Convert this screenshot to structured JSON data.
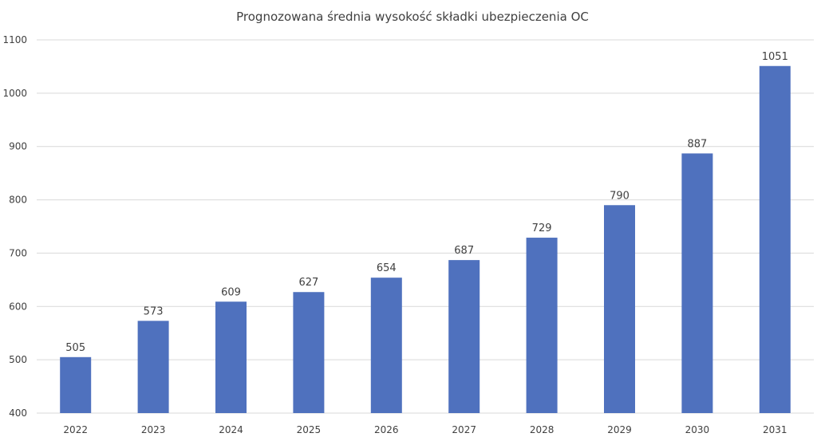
{
  "chart_data": {
    "type": "bar",
    "title": "Prognozowana średnia wysokość składki ubezpieczenia OC",
    "xlabel": "",
    "ylabel": "",
    "categories": [
      "2022",
      "2023",
      "2024",
      "2025",
      "2026",
      "2027",
      "2028",
      "2029",
      "2030",
      "2031"
    ],
    "values": [
      505,
      573,
      609,
      627,
      654,
      687,
      729,
      790,
      887,
      1051
    ],
    "data_labels": [
      "505",
      "573",
      "609",
      "627",
      "654",
      "687",
      "729",
      "790",
      "887",
      "1051"
    ],
    "ylim": [
      400,
      1100
    ],
    "yticks": [
      "400",
      "500",
      "600",
      "700",
      "800",
      "900",
      "1000",
      "1100"
    ],
    "grid": "horizontal",
    "legend": "none",
    "bar_color": "#4F71BE",
    "grid_color": "#D9D9D9",
    "text_color": "#404040"
  }
}
